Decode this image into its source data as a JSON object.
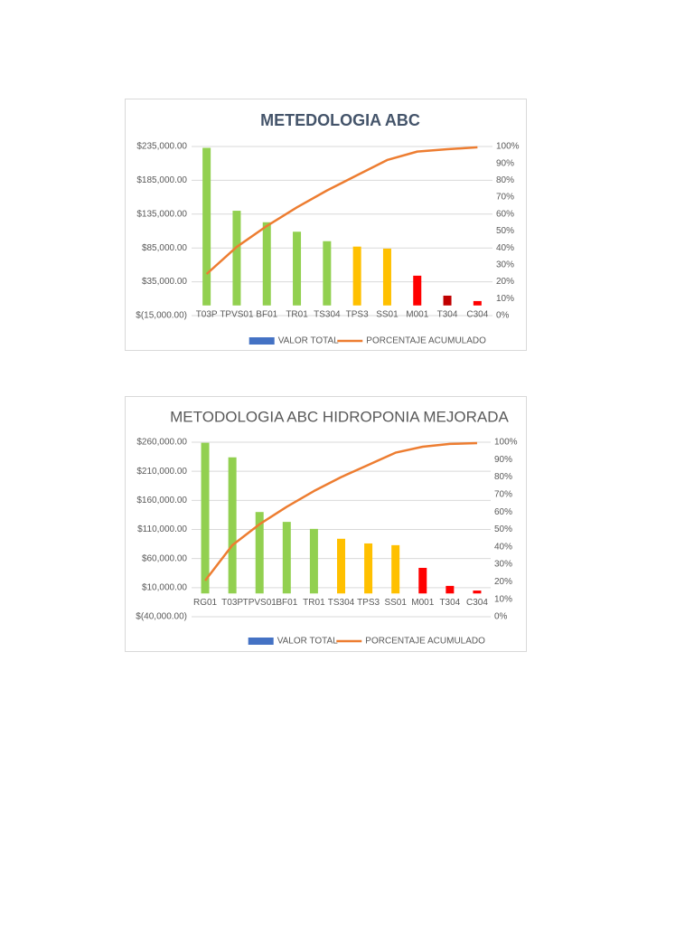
{
  "chart_data": [
    {
      "type": "combo",
      "title": "METEDOLOGIA ABC",
      "categories": [
        "T03P",
        "TPVS01",
        "BF01",
        "TR01",
        "TS304",
        "TPS3",
        "SS01",
        "M001",
        "T304",
        "C304"
      ],
      "series": [
        {
          "name": "VALOR TOTAL",
          "color": "#4472c4",
          "colors": [
            "#92d050",
            "#92d050",
            "#92d050",
            "#92d050",
            "#92d050",
            "#ffc000",
            "#ffc000",
            "#ff0000",
            "#c00000",
            "#ff0000"
          ],
          "values": [
            233000,
            140000,
            123000,
            109000,
            95000,
            87000,
            84000,
            44000,
            14500,
            6500
          ]
        },
        {
          "name": "PORCENTAJE ACUMULADO",
          "color": "#ed7d31",
          "axis": "y2",
          "values": [
            24.6,
            40.6,
            53,
            64,
            74,
            83,
            92,
            97,
            98.4,
            99.5
          ]
        }
      ],
      "ylim": [
        -15000,
        235000
      ],
      "yticks": [
        {
          "value": -15000,
          "label": "$(15,000.00)"
        },
        {
          "value": 35000,
          "label": "$35,000.00"
        },
        {
          "value": 85000,
          "label": "$85,000.00"
        },
        {
          "value": 135000,
          "label": "$135,000.00"
        },
        {
          "value": 185000,
          "label": "$185,000.00"
        },
        {
          "value": 235000,
          "label": "$235,000.00"
        }
      ],
      "y2lim": [
        0,
        100
      ],
      "y2ticks": [
        {
          "value": 0,
          "label": "0%"
        },
        {
          "value": 10,
          "label": "10%"
        },
        {
          "value": 20,
          "label": "20%"
        },
        {
          "value": 30,
          "label": "30%"
        },
        {
          "value": 40,
          "label": "40%"
        },
        {
          "value": 50,
          "label": "50%"
        },
        {
          "value": 60,
          "label": "60%"
        },
        {
          "value": 70,
          "label": "70%"
        },
        {
          "value": 80,
          "label": "80%"
        },
        {
          "value": 90,
          "label": "90%"
        },
        {
          "value": 100,
          "label": "100%"
        }
      ],
      "grid": true,
      "legend": "bottom"
    },
    {
      "type": "combo",
      "title": "METODOLOGIA ABC HIDROPONIA MEJORADA",
      "categories": [
        "RG01",
        "T03P",
        "TPVS01",
        "BF01",
        "TR01",
        "TS304",
        "TPS3",
        "SS01",
        "M001",
        "T304",
        "C304"
      ],
      "series": [
        {
          "name": "VALOR TOTAL",
          "color": "#4472c4",
          "colors": [
            "#92d050",
            "#92d050",
            "#92d050",
            "#92d050",
            "#92d050",
            "#ffc000",
            "#ffc000",
            "#ffc000",
            "#ff0000",
            "#ff0000",
            "#ff0000"
          ],
          "values": [
            259000,
            234000,
            140000,
            123000,
            111000,
            94000,
            86000,
            83000,
            44000,
            13000,
            5000
          ]
        },
        {
          "name": "PORCENTAJE ACUMULADO",
          "color": "#ed7d31",
          "axis": "y2",
          "values": [
            20.7,
            41,
            53,
            63,
            72,
            80,
            87,
            94,
            97.4,
            99,
            99.5
          ]
        }
      ],
      "ylim": [
        -40000,
        260000
      ],
      "yticks": [
        {
          "value": -40000,
          "label": "$(40,000.00)"
        },
        {
          "value": 10000,
          "label": "$10,000.00"
        },
        {
          "value": 60000,
          "label": "$60,000.00"
        },
        {
          "value": 110000,
          "label": "$110,000.00"
        },
        {
          "value": 160000,
          "label": "$160,000.00"
        },
        {
          "value": 210000,
          "label": "$210,000.00"
        },
        {
          "value": 260000,
          "label": "$260,000.00"
        }
      ],
      "y2lim": [
        0,
        100
      ],
      "y2ticks": [
        {
          "value": 0,
          "label": "0%"
        },
        {
          "value": 10,
          "label": "10%"
        },
        {
          "value": 20,
          "label": "20%"
        },
        {
          "value": 30,
          "label": "30%"
        },
        {
          "value": 40,
          "label": "40%"
        },
        {
          "value": 50,
          "label": "50%"
        },
        {
          "value": 60,
          "label": "60%"
        },
        {
          "value": 70,
          "label": "70%"
        },
        {
          "value": 80,
          "label": "80%"
        },
        {
          "value": 90,
          "label": "90%"
        },
        {
          "value": 100,
          "label": "100%"
        }
      ],
      "grid": true,
      "legend": "bottom"
    }
  ]
}
